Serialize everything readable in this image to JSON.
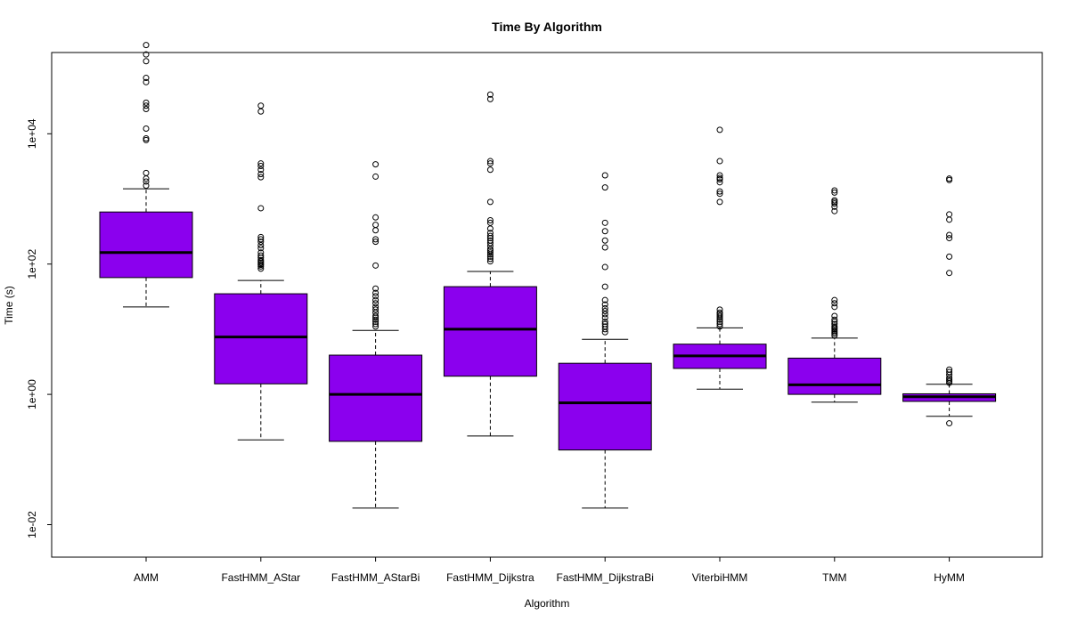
{
  "chart_data": {
    "type": "boxplot",
    "title": "Time By Algorithm",
    "xlabel": "Algorithm",
    "ylabel": "Time (s)",
    "y_scale": "log10",
    "ylim": [
      0.01,
      300000
    ],
    "y_ticks": [
      {
        "value": 0.01,
        "label": "1e-02"
      },
      {
        "value": 1,
        "label": "1e+00"
      },
      {
        "value": 100,
        "label": "1e+02"
      },
      {
        "value": 10000,
        "label": "1e+04"
      }
    ],
    "box_color": "#8B00EE",
    "grid": false,
    "categories": [
      "AMM",
      "FastHMM_AStar",
      "FastHMM_AStarBi",
      "FastHMM_Dijkstra",
      "FastHMM_DijkstraBi",
      "ViterbiHMM",
      "TMM",
      "HyMM"
    ],
    "boxes": [
      {
        "name": "AMM",
        "whisker_low": 22,
        "q1": 62,
        "median": 150,
        "q3": 630,
        "whisker_high": 1430,
        "outliers": [
          1600,
          1850,
          2050,
          2500,
          8000,
          8500,
          12000,
          24000,
          27000,
          30000,
          62000,
          72000,
          130000,
          165000,
          230000
        ]
      },
      {
        "name": "FastHMM_AStar",
        "whisker_low": 0.2,
        "q1": 1.45,
        "median": 7.6,
        "q3": 35,
        "whisker_high": 56,
        "outliers": [
          85,
          92,
          97,
          100,
          105,
          110,
          115,
          125,
          135,
          150,
          175,
          195,
          220,
          240,
          260,
          720,
          2150,
          2400,
          2800,
          3200,
          3500,
          22000,
          27000
        ]
      },
      {
        "name": "FastHMM_AStarBi",
        "whisker_low": 0.018,
        "q1": 0.19,
        "median": 1.0,
        "q3": 4.0,
        "whisker_high": 9.6,
        "outliers": [
          11,
          12,
          13,
          14,
          15,
          16,
          18,
          20,
          22,
          25,
          28,
          32,
          36,
          42,
          95,
          220,
          240,
          330,
          400,
          520,
          2200,
          3400
        ]
      },
      {
        "name": "FastHMM_Dijkstra",
        "whisker_low": 0.23,
        "q1": 1.9,
        "median": 10,
        "q3": 45,
        "whisker_high": 77,
        "outliers": [
          110,
          120,
          130,
          140,
          150,
          160,
          170,
          190,
          210,
          230,
          250,
          270,
          300,
          350,
          430,
          470,
          900,
          2800,
          3500,
          3800,
          34000,
          40000
        ]
      },
      {
        "name": "FastHMM_DijkstraBi",
        "whisker_low": 0.018,
        "q1": 0.14,
        "median": 0.74,
        "q3": 3.0,
        "whisker_high": 7.0,
        "outliers": [
          9,
          10,
          11,
          12,
          13,
          15,
          17,
          19,
          21,
          24,
          28,
          45,
          90,
          180,
          230,
          320,
          430,
          1500,
          2300
        ]
      },
      {
        "name": "ViterbiHMM",
        "whisker_low": 1.2,
        "q1": 2.5,
        "median": 3.9,
        "q3": 5.9,
        "whisker_high": 10.5,
        "outliers": [
          11,
          12,
          13,
          14,
          15,
          16,
          17,
          18,
          20,
          900,
          1200,
          1300,
          1800,
          2000,
          2100,
          2300,
          3800,
          11500
        ]
      },
      {
        "name": "TMM",
        "whisker_low": 0.76,
        "q1": 1.0,
        "median": 1.4,
        "q3": 3.6,
        "whisker_high": 7.3,
        "outliers": [
          8,
          8.5,
          9,
          9.5,
          10,
          10.5,
          11,
          12,
          13,
          14,
          16,
          22,
          25,
          28,
          650,
          760,
          850,
          900,
          950,
          1250,
          1350
        ]
      },
      {
        "name": "HyMM",
        "whisker_low": 0.46,
        "q1": 0.78,
        "median": 0.92,
        "q3": 1.02,
        "whisker_high": 1.43,
        "outliers": [
          1.5,
          1.6,
          1.7,
          1.8,
          2.0,
          2.2,
          2.4,
          0.36,
          73,
          130,
          250,
          280,
          480,
          580,
          1950,
          2050
        ]
      }
    ]
  }
}
